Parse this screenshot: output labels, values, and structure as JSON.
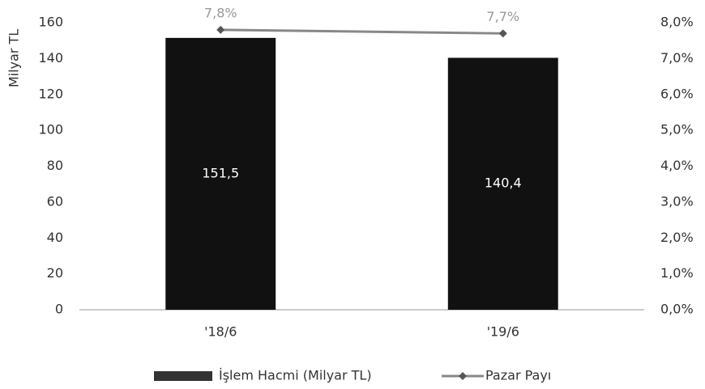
{
  "chart_data": {
    "type": "bar",
    "y_label": "Milyar TL",
    "categories": [
      "'18/6",
      "'19/6"
    ],
    "series": [
      {
        "name": "İşlem Hacmi (Milyar TL)",
        "type": "bar",
        "color": "#111111",
        "values": [
          151.5,
          140.4
        ],
        "value_labels": [
          "151,5",
          "140,4"
        ]
      },
      {
        "name": "Pazar Payı",
        "type": "line",
        "axis": "y2",
        "color": "#888888",
        "values": [
          7.8,
          7.7
        ],
        "value_labels": [
          "7,8%",
          "7,7%"
        ]
      }
    ],
    "ylim": [
      0,
      160
    ],
    "yticks": [
      0,
      20,
      40,
      60,
      80,
      100,
      120,
      140,
      160
    ],
    "y2lim": [
      0,
      8
    ],
    "y2ticks": [
      {
        "value": 0,
        "label": "0,0%"
      },
      {
        "value": 1,
        "label": "1,0%"
      },
      {
        "value": 2,
        "label": "2,0%"
      },
      {
        "value": 3,
        "label": "3,0%"
      },
      {
        "value": 4,
        "label": "4,0%"
      },
      {
        "value": 5,
        "label": "5,0%"
      },
      {
        "value": 6,
        "label": "6,0%"
      },
      {
        "value": 7,
        "label": "7,0%"
      },
      {
        "value": 8,
        "label": "8,0%"
      }
    ],
    "legend": "bottom"
  }
}
